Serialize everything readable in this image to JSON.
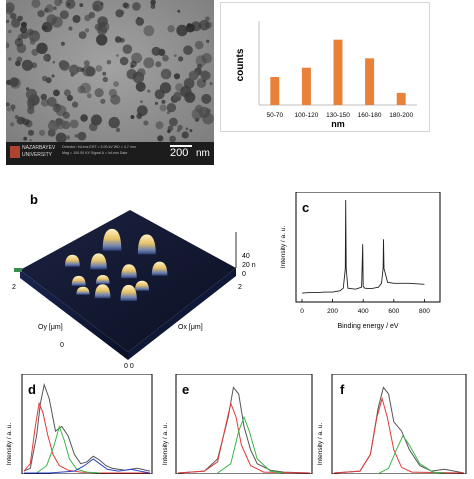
{
  "sem": {
    "footer_line1": "Nazarbayev",
    "footer_line2": "University",
    "meta_lines": [
      "Detector: InLens  EHT = 5.00 kV  WD = 4.7 mm",
      "Mag = 100.00 KX  Signal A = InLens  Date"
    ],
    "scale_value": "200",
    "scale_unit": "nm"
  },
  "chart_data": [
    {
      "type": "bar",
      "categories": [
        "50-70",
        "100-120",
        "130-150",
        "160-180",
        "180-200"
      ],
      "values": [
        3,
        4,
        7,
        5,
        1.3
      ],
      "ylabel": "counts",
      "xlabel": "nm",
      "ylim": [
        0,
        9
      ],
      "color": "#e8823b"
    },
    {
      "type": "line",
      "panel_label": "c",
      "xlabel": "Binding energy / eV",
      "ylabel": "Intensity / a. u.",
      "xticks": [
        "0",
        "200",
        "400",
        "600",
        "800"
      ],
      "xlim": [
        0,
        850
      ],
      "x": [
        0,
        50,
        100,
        150,
        200,
        250,
        270,
        283,
        286,
        289,
        300,
        350,
        390,
        397,
        400,
        410,
        450,
        500,
        520,
        530,
        533,
        536,
        560,
        600,
        700,
        800
      ],
      "y": [
        0.05,
        0.055,
        0.055,
        0.06,
        0.06,
        0.075,
        0.1,
        0.3,
        1.0,
        0.3,
        0.1,
        0.09,
        0.11,
        0.55,
        0.12,
        0.1,
        0.095,
        0.11,
        0.15,
        0.3,
        0.6,
        0.3,
        0.16,
        0.15,
        0.15,
        0.14
      ],
      "color": "#222222"
    },
    {
      "type": "line",
      "panel_label": "d",
      "ylabel": "Intensity / a. u.",
      "series": [
        {
          "color": "#555555",
          "x": [
            0,
            5,
            10,
            13,
            16,
            20,
            25,
            30,
            35,
            40,
            45,
            50,
            55,
            60,
            65,
            70,
            80,
            90,
            100
          ],
          "y": [
            0.02,
            0.05,
            0.4,
            0.75,
            0.95,
            0.8,
            0.45,
            0.5,
            0.4,
            0.2,
            0.1,
            0.12,
            0.18,
            0.14,
            0.08,
            0.05,
            0.03,
            0.05,
            0.02
          ]
        },
        {
          "color": "#e03a3a",
          "x": [
            0,
            5,
            9,
            12,
            15,
            19,
            23,
            28,
            35,
            45,
            60,
            100
          ],
          "y": [
            0.02,
            0.1,
            0.5,
            0.75,
            0.65,
            0.4,
            0.2,
            0.08,
            0.03,
            0.01,
            0.0,
            0.0
          ]
        },
        {
          "color": "#3bb54a",
          "x": [
            10,
            18,
            24,
            28,
            32,
            36,
            42,
            50,
            60
          ],
          "y": [
            0.0,
            0.08,
            0.3,
            0.5,
            0.35,
            0.15,
            0.04,
            0.01,
            0.0
          ]
        },
        {
          "color": "#2d45c8",
          "x": [
            0,
            20,
            40,
            48,
            55,
            60,
            66,
            75,
            85,
            92,
            100
          ],
          "y": [
            0.0,
            0.0,
            0.02,
            0.08,
            0.15,
            0.1,
            0.04,
            0.02,
            0.04,
            0.02,
            0.0
          ]
        }
      ]
    },
    {
      "type": "line",
      "panel_label": "e",
      "ylabel": "Intensity / a. u.",
      "series": [
        {
          "color": "#555555",
          "x": [
            0,
            20,
            30,
            38,
            42,
            46,
            50,
            55,
            60,
            70,
            80,
            100
          ],
          "y": [
            0.0,
            0.02,
            0.15,
            0.6,
            0.92,
            0.85,
            0.5,
            0.25,
            0.1,
            0.03,
            0.01,
            0.0
          ]
        },
        {
          "color": "#e03a3a",
          "x": [
            0,
            20,
            30,
            36,
            40,
            44,
            48,
            55,
            65,
            100
          ],
          "y": [
            0.0,
            0.02,
            0.12,
            0.5,
            0.75,
            0.6,
            0.3,
            0.08,
            0.01,
            0.0
          ]
        },
        {
          "color": "#3bb54a",
          "x": [
            30,
            40,
            46,
            50,
            54,
            60,
            70,
            80
          ],
          "y": [
            0.0,
            0.1,
            0.45,
            0.6,
            0.45,
            0.15,
            0.02,
            0.0
          ]
        }
      ]
    },
    {
      "type": "line",
      "panel_label": "f",
      "ylabel": "Intensity / a. u.",
      "series": [
        {
          "color": "#555555",
          "x": [
            0,
            20,
            28,
            34,
            38,
            42,
            46,
            52,
            58,
            66,
            75,
            85,
            100
          ],
          "y": [
            0.0,
            0.02,
            0.2,
            0.7,
            0.92,
            0.85,
            0.55,
            0.45,
            0.25,
            0.08,
            0.02,
            0.04,
            0.0
          ]
        },
        {
          "color": "#e03a3a",
          "x": [
            0,
            20,
            28,
            33,
            37,
            41,
            46,
            52,
            60,
            100
          ],
          "y": [
            0.0,
            0.02,
            0.2,
            0.6,
            0.8,
            0.6,
            0.25,
            0.06,
            0.01,
            0.0
          ]
        },
        {
          "color": "#3bb54a",
          "x": [
            35,
            42,
            48,
            53,
            58,
            66,
            76,
            85
          ],
          "y": [
            0.0,
            0.05,
            0.25,
            0.4,
            0.3,
            0.1,
            0.01,
            0.0
          ]
        }
      ]
    }
  ],
  "afm": {
    "panel_label": "b",
    "oy_label": "Oy [μm]",
    "ox_label": "Ox [μm]",
    "z_ticks": [
      "40",
      "20 n",
      "0"
    ],
    "tick_2_left": "2",
    "tick_2_right": "2",
    "tick_0_bottom": "0  0",
    "tick_0_left": "0"
  }
}
